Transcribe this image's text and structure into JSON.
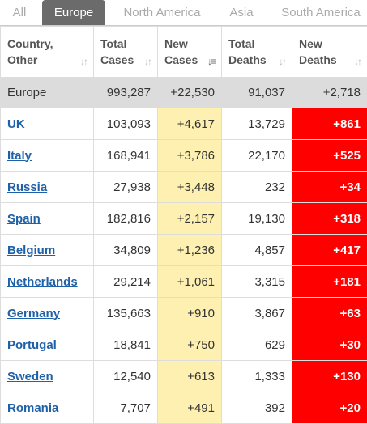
{
  "tabs": [
    "All",
    "Europe",
    "North America",
    "Asia",
    "South America"
  ],
  "active_tab": "Europe",
  "table": {
    "headers": [
      {
        "l1": "Country,",
        "l2": "Other"
      },
      {
        "l1": "Total",
        "l2": "Cases"
      },
      {
        "l1": "New",
        "l2": "Cases"
      },
      {
        "l1": "Total",
        "l2": "Deaths"
      },
      {
        "l1": "New",
        "l2": "Deaths"
      }
    ],
    "sorted_column": "New Cases",
    "total": {
      "name": "Europe",
      "total_cases": "993,287",
      "new_cases": "+22,530",
      "total_deaths": "91,037",
      "new_deaths": "+2,718"
    },
    "rows": [
      {
        "country": "UK",
        "total_cases": "103,093",
        "new_cases": "+4,617",
        "total_deaths": "13,729",
        "new_deaths": "+861"
      },
      {
        "country": "Italy",
        "total_cases": "168,941",
        "new_cases": "+3,786",
        "total_deaths": "22,170",
        "new_deaths": "+525"
      },
      {
        "country": "Russia",
        "total_cases": "27,938",
        "new_cases": "+3,448",
        "total_deaths": "232",
        "new_deaths": "+34"
      },
      {
        "country": "Spain",
        "total_cases": "182,816",
        "new_cases": "+2,157",
        "total_deaths": "19,130",
        "new_deaths": "+318"
      },
      {
        "country": "Belgium",
        "total_cases": "34,809",
        "new_cases": "+1,236",
        "total_deaths": "4,857",
        "new_deaths": "+417"
      },
      {
        "country": "Netherlands",
        "total_cases": "29,214",
        "new_cases": "+1,061",
        "total_deaths": "3,315",
        "new_deaths": "+181"
      },
      {
        "country": "Germany",
        "total_cases": "135,663",
        "new_cases": "+910",
        "total_deaths": "3,867",
        "new_deaths": "+63"
      },
      {
        "country": "Portugal",
        "total_cases": "18,841",
        "new_cases": "+750",
        "total_deaths": "629",
        "new_deaths": "+30"
      },
      {
        "country": "Sweden",
        "total_cases": "12,540",
        "new_cases": "+613",
        "total_deaths": "1,333",
        "new_deaths": "+130"
      },
      {
        "country": "Romania",
        "total_cases": "7,707",
        "new_cases": "+491",
        "total_deaths": "392",
        "new_deaths": "+20"
      }
    ]
  },
  "colors": {
    "active_tab": "#6b6b6b",
    "new_cases_bg": "#fdf0b0",
    "new_deaths_bg": "#ff0000",
    "link": "#1f61a8"
  }
}
